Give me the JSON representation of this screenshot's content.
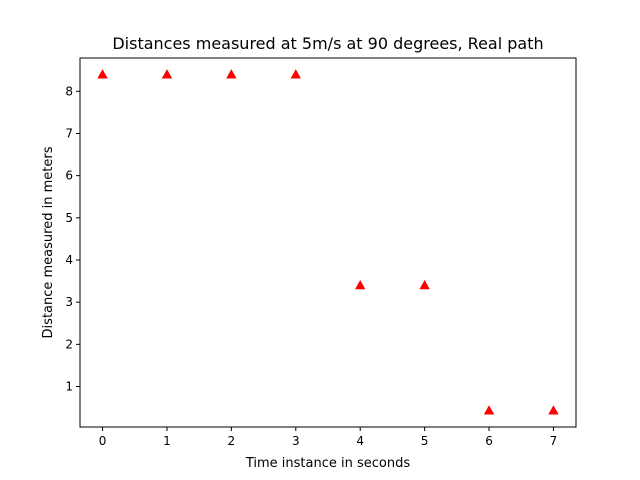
{
  "chart_data": {
    "type": "scatter",
    "title": "Distances measured at 5m/s at 90 degrees, Real path",
    "xlabel": "Time instance in seconds",
    "ylabel": "Distance measured in meters",
    "xlim": [
      -0.35,
      7.35
    ],
    "ylim": [
      0.04,
      8.79
    ],
    "xticks": [
      0,
      1,
      2,
      3,
      4,
      5,
      6,
      7
    ],
    "yticks": [
      1,
      2,
      3,
      4,
      5,
      6,
      7,
      8
    ],
    "grid": false,
    "marker": "triangle-up",
    "series": [
      {
        "color": "#ff0000",
        "points": [
          {
            "x": 0,
            "y": 8.4
          },
          {
            "x": 1,
            "y": 8.4
          },
          {
            "x": 2,
            "y": 8.4
          },
          {
            "x": 3,
            "y": 8.4
          },
          {
            "x": 4,
            "y": 3.4
          },
          {
            "x": 5,
            "y": 3.4
          },
          {
            "x": 6,
            "y": 0.43
          },
          {
            "x": 7,
            "y": 0.43
          }
        ]
      }
    ]
  }
}
